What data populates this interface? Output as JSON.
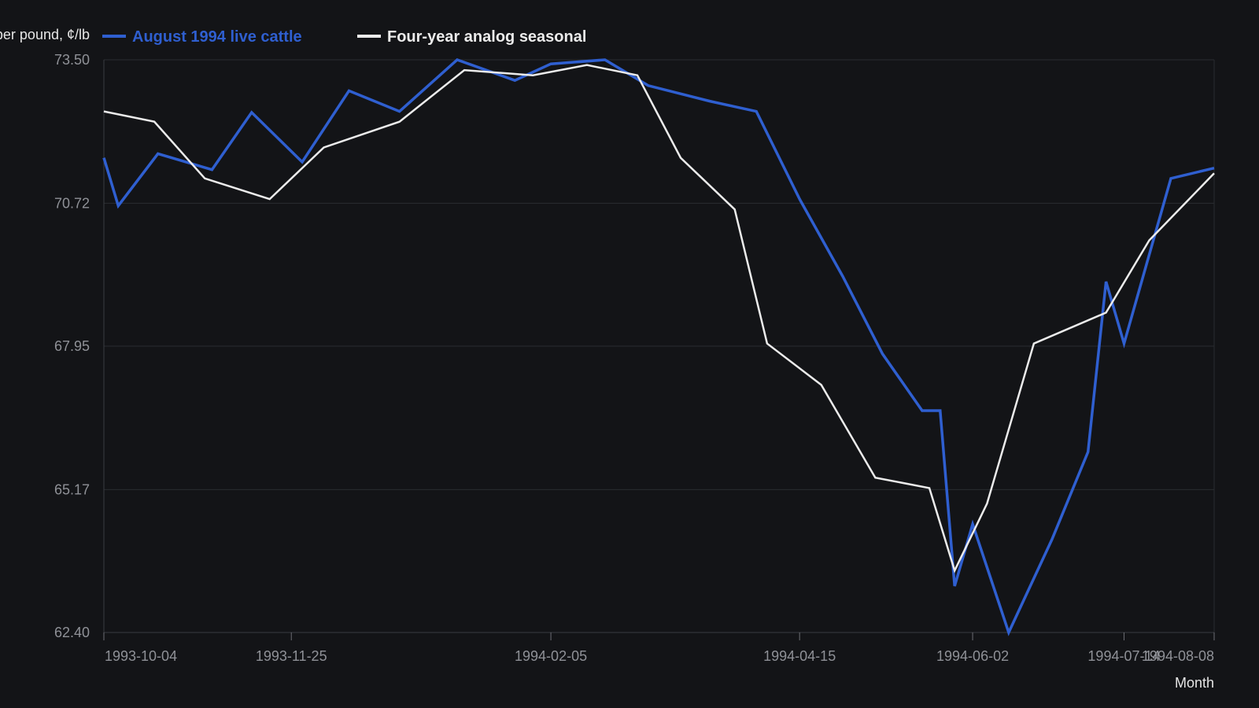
{
  "chart_data": {
    "type": "line",
    "xlabel": "Month",
    "ylabel": "Price per pound, ¢/lb",
    "ylim": [
      62.4,
      73.5
    ],
    "y_ticks": [
      "62.40",
      "65.17",
      "67.95",
      "70.72",
      "73.50"
    ],
    "x_ticks": [
      "1993-10-04",
      "1993-11-25",
      "1994-02-05",
      "1994-04-15",
      "1994-06-02",
      "1994-07-14",
      "1994-08-08"
    ],
    "xlim": [
      "1993-10-04",
      "1994-08-08"
    ],
    "grid": "horizontal",
    "legend_position": "top-left",
    "series": [
      {
        "name": "August 1994 live cattle",
        "color": "#2f5fd0",
        "points": [
          [
            "1993-10-04",
            71.6
          ],
          [
            "1993-10-08",
            70.67
          ],
          [
            "1993-10-19",
            71.68
          ],
          [
            "1993-11-03",
            71.37
          ],
          [
            "1993-11-14",
            72.48
          ],
          [
            "1993-11-28",
            71.52
          ],
          [
            "1993-12-11",
            72.9
          ],
          [
            "1993-12-25",
            72.5
          ],
          [
            "1994-01-10",
            73.5
          ],
          [
            "1994-01-26",
            73.1
          ],
          [
            "1994-02-05",
            73.42
          ],
          [
            "1994-02-20",
            73.5
          ],
          [
            "1994-03-04",
            73.0
          ],
          [
            "1994-03-21",
            72.7
          ],
          [
            "1994-04-03",
            72.5
          ],
          [
            "1994-04-15",
            70.8
          ],
          [
            "1994-04-27",
            69.3
          ],
          [
            "1994-05-08",
            67.8
          ],
          [
            "1994-05-19",
            66.7
          ],
          [
            "1994-05-24",
            66.7
          ],
          [
            "1994-05-28",
            63.3
          ],
          [
            "1994-06-02",
            64.5
          ],
          [
            "1994-06-12",
            62.4
          ],
          [
            "1994-06-24",
            64.2
          ],
          [
            "1994-07-04",
            65.9
          ],
          [
            "1994-07-09",
            69.2
          ],
          [
            "1994-07-14",
            68.0
          ],
          [
            "1994-07-27",
            71.2
          ],
          [
            "1994-08-08",
            71.4
          ]
        ]
      },
      {
        "name": "Four-year analog seasonal",
        "color": "#ebebeb",
        "points": [
          [
            "1993-10-04",
            72.5
          ],
          [
            "1993-10-18",
            72.3
          ],
          [
            "1993-11-01",
            71.2
          ],
          [
            "1993-11-19",
            70.8
          ],
          [
            "1993-12-04",
            71.8
          ],
          [
            "1993-12-25",
            72.3
          ],
          [
            "1994-01-12",
            73.3
          ],
          [
            "1994-01-31",
            73.2
          ],
          [
            "1994-02-15",
            73.4
          ],
          [
            "1994-03-01",
            73.2
          ],
          [
            "1994-03-13",
            71.6
          ],
          [
            "1994-03-28",
            70.6
          ],
          [
            "1994-04-06",
            68.0
          ],
          [
            "1994-04-21",
            67.2
          ],
          [
            "1994-05-06",
            65.4
          ],
          [
            "1994-05-21",
            65.2
          ],
          [
            "1994-05-28",
            63.6
          ],
          [
            "1994-06-06",
            64.9
          ],
          [
            "1994-06-19",
            68.0
          ],
          [
            "1994-07-09",
            68.6
          ],
          [
            "1994-07-21",
            70.0
          ],
          [
            "1994-08-08",
            71.3
          ]
        ]
      }
    ]
  }
}
